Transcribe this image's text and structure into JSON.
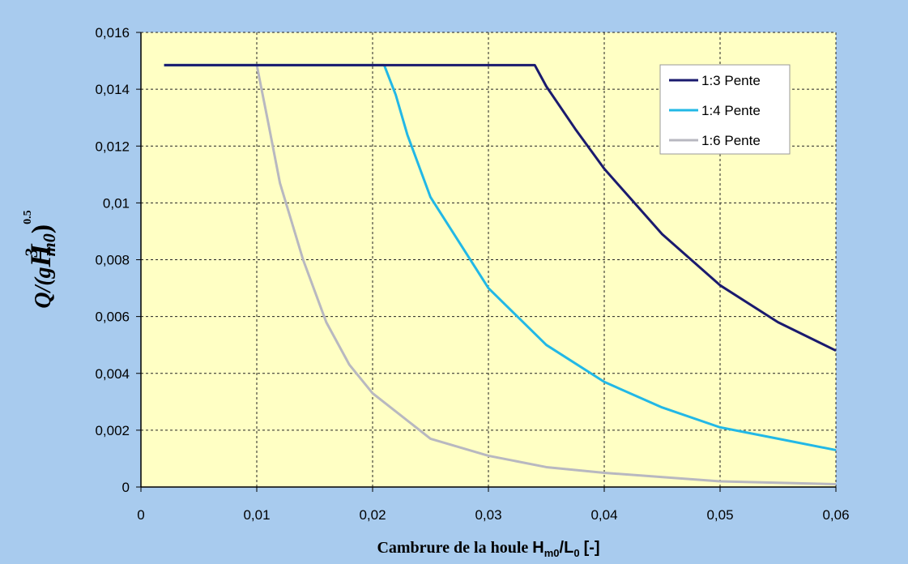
{
  "chart_data": {
    "type": "line",
    "x_label": [
      "Cambrure de la houle",
      "H",
      "m0",
      "/L",
      "0",
      "[-]"
    ],
    "y_label": [
      "Q/(g",
      "H",
      "3",
      "m0",
      ")",
      "0.5"
    ],
    "xlim": [
      0,
      0.06
    ],
    "ylim": [
      0,
      0.016
    ],
    "xticks": [
      0,
      {
        "value": 0.01,
        "label": "0,01"
      },
      {
        "value": 0.02,
        "label": "0,02"
      },
      {
        "value": 0.03,
        "label": "0,03"
      },
      {
        "value": 0.04,
        "label": "0,04"
      },
      {
        "value": 0.05,
        "label": "0,05"
      },
      {
        "value": 0.06,
        "label": "0,06"
      }
    ],
    "yticks": [
      0,
      {
        "value": 0.002,
        "label": "0,002"
      },
      {
        "value": 0.004,
        "label": "0,004"
      },
      {
        "value": 0.006,
        "label": "0,006"
      },
      {
        "value": 0.008,
        "label": "0,008"
      },
      {
        "value": 0.01,
        "label": "0,01"
      },
      {
        "value": 0.012,
        "label": "0,012"
      },
      {
        "value": 0.014,
        "label": "0,014"
      },
      {
        "value": 0.016,
        "label": "0,016"
      }
    ],
    "grid": true,
    "legend": "upper right",
    "series": [
      {
        "name": "1:3 Pente",
        "color": "#1a1a6e",
        "x": [
          0.002,
          0.034,
          0.035,
          0.0375,
          0.04,
          0.045,
          0.05,
          0.055,
          0.06
        ],
        "values": [
          0.01485,
          0.01485,
          0.0141,
          0.0126,
          0.0112,
          0.0089,
          0.0071,
          0.0058,
          0.0048
        ]
      },
      {
        "name": "1:4 Pente",
        "color": "#22b8e6",
        "x": [
          0.002,
          0.021,
          0.022,
          0.023,
          0.025,
          0.03,
          0.035,
          0.04,
          0.045,
          0.05,
          0.055,
          0.06
        ],
        "values": [
          0.01485,
          0.01485,
          0.0138,
          0.0124,
          0.0102,
          0.007,
          0.005,
          0.0037,
          0.0028,
          0.0021,
          0.0017,
          0.0013
        ]
      },
      {
        "name": "1:6 Pente",
        "color": "#b8b8c0",
        "x": [
          0.002,
          0.01,
          0.011,
          0.012,
          0.014,
          0.016,
          0.018,
          0.02,
          0.025,
          0.03,
          0.035,
          0.04,
          0.05,
          0.06
        ],
        "values": [
          0.01485,
          0.01485,
          0.0128,
          0.0107,
          0.008,
          0.0058,
          0.0043,
          0.0033,
          0.0017,
          0.0011,
          0.0007,
          0.0005,
          0.0002,
          0.0001
        ]
      }
    ]
  }
}
